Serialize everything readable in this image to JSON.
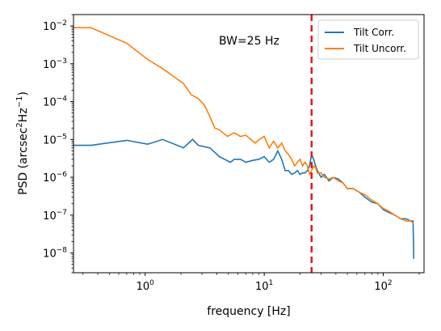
{
  "chart_data": {
    "type": "line",
    "x_scale": "log",
    "y_scale": "log",
    "xlabel": "frequency [Hz]",
    "ylabel": {
      "prefix": "PSD (arcsec",
      "sup1": "2",
      "mid": "Hz",
      "sup2": "−1",
      "suffix": ")"
    },
    "xlim": [
      0.25,
      220
    ],
    "ylim": [
      3e-09,
      0.02
    ],
    "x_ticks": [
      {
        "value": 1,
        "base": "10",
        "exp": "0"
      },
      {
        "value": 10,
        "base": "10",
        "exp": "1"
      },
      {
        "value": 100,
        "base": "10",
        "exp": "2"
      }
    ],
    "y_ticks": [
      {
        "value": 1e-08,
        "base": "10",
        "exp": "−8"
      },
      {
        "value": 1e-07,
        "base": "10",
        "exp": "−7"
      },
      {
        "value": 1e-06,
        "base": "10",
        "exp": "−6"
      },
      {
        "value": 1e-05,
        "base": "10",
        "exp": "−5"
      },
      {
        "value": 0.0001,
        "base": "10",
        "exp": "−4"
      },
      {
        "value": 0.001,
        "base": "10",
        "exp": "−3"
      },
      {
        "value": 0.01,
        "base": "10",
        "exp": "−2"
      }
    ],
    "vline": {
      "x": 25,
      "color": "#e41a1c",
      "style": "dashed"
    },
    "annotation": {
      "text": "BW=25 Hz",
      "x": 3.2,
      "y": 0.004
    },
    "legend_placement": "top-right",
    "series": [
      {
        "name": "Tilt Corr.",
        "color": "#1f77b4",
        "points": [
          [
            0.18,
            7e-06
          ],
          [
            0.35,
            7e-06
          ],
          [
            0.7,
            9.5e-06
          ],
          [
            1.05,
            7.5e-06
          ],
          [
            1.4,
            1e-05
          ],
          [
            2.1,
            6e-06
          ],
          [
            2.5,
            1e-05
          ],
          [
            2.8,
            7e-06
          ],
          [
            3.5,
            6e-06
          ],
          [
            4.2,
            3.5e-06
          ],
          [
            5.2,
            2.5e-06
          ],
          [
            5.6,
            3e-06
          ],
          [
            6.3,
            3e-06
          ],
          [
            7,
            2.5e-06
          ],
          [
            8,
            2.8e-06
          ],
          [
            9,
            3e-06
          ],
          [
            10,
            3.5e-06
          ],
          [
            11,
            2.5e-06
          ],
          [
            12,
            3e-06
          ],
          [
            13,
            5e-06
          ],
          [
            14,
            3e-06
          ],
          [
            15,
            1.5e-06
          ],
          [
            16,
            1.5e-06
          ],
          [
            17,
            1.2e-06
          ],
          [
            18,
            1.3e-06
          ],
          [
            19,
            1.5e-06
          ],
          [
            20,
            1.2e-06
          ],
          [
            21,
            1.3e-06
          ],
          [
            22,
            1.3e-06
          ],
          [
            23,
            1.5e-06
          ],
          [
            24,
            2e-06
          ],
          [
            25,
            4e-06
          ],
          [
            26,
            3e-06
          ],
          [
            27,
            2e-06
          ],
          [
            28,
            1.5e-06
          ],
          [
            30,
            1e-06
          ],
          [
            32,
            1.2e-06
          ],
          [
            35,
            8e-07
          ],
          [
            38,
            1e-06
          ],
          [
            42,
            9e-07
          ],
          [
            46,
            7e-07
          ],
          [
            50,
            5e-07
          ],
          [
            56,
            5e-07
          ],
          [
            63,
            4e-07
          ],
          [
            70,
            3e-07
          ],
          [
            80,
            2.2e-07
          ],
          [
            90,
            2e-07
          ],
          [
            100,
            1.4e-07
          ],
          [
            110,
            1.2e-07
          ],
          [
            125,
            1e-07
          ],
          [
            140,
            8e-08
          ],
          [
            155,
            8e-08
          ],
          [
            170,
            7e-08
          ],
          [
            178,
            7e-08
          ],
          [
            179.5,
            1.5e-08
          ],
          [
            180,
            7e-09
          ]
        ]
      },
      {
        "name": "Tilt Uncorr.",
        "color": "#ff7f0e",
        "points": [
          [
            0.18,
            0.009
          ],
          [
            0.35,
            0.009
          ],
          [
            0.7,
            0.0035
          ],
          [
            1.05,
            0.0013
          ],
          [
            1.4,
            0.00075
          ],
          [
            1.75,
            0.00045
          ],
          [
            2.1,
            0.0003
          ],
          [
            2.45,
            0.00015
          ],
          [
            2.8,
            0.00012
          ],
          [
            3.15,
            8e-05
          ],
          [
            3.5,
            4e-05
          ],
          [
            3.85,
            2e-05
          ],
          [
            4.2,
            1.8e-05
          ],
          [
            4.9,
            1.2e-05
          ],
          [
            5.6,
            1.5e-05
          ],
          [
            6.3,
            1.2e-05
          ],
          [
            7,
            1.3e-05
          ],
          [
            7.7,
            1e-05
          ],
          [
            8.4,
            8e-06
          ],
          [
            9.1,
            1e-05
          ],
          [
            10,
            1.2e-05
          ],
          [
            11,
            6e-06
          ],
          [
            12,
            9e-06
          ],
          [
            13,
            6e-06
          ],
          [
            14,
            8e-06
          ],
          [
            15,
            5e-06
          ],
          [
            16,
            4e-06
          ],
          [
            17,
            3e-06
          ],
          [
            18,
            2e-06
          ],
          [
            19,
            2.5e-06
          ],
          [
            20,
            3e-06
          ],
          [
            21,
            2e-06
          ],
          [
            22,
            2.5e-06
          ],
          [
            23,
            2e-06
          ],
          [
            24,
            1.2e-06
          ],
          [
            25,
            1.5e-06
          ],
          [
            26,
            2e-06
          ],
          [
            27,
            1.8e-06
          ],
          [
            28,
            1.3e-06
          ],
          [
            30,
            1.3e-06
          ],
          [
            32,
            1e-06
          ],
          [
            35,
            9e-07
          ],
          [
            38,
            1e-06
          ],
          [
            42,
            8e-07
          ],
          [
            46,
            7e-07
          ],
          [
            50,
            5e-07
          ],
          [
            56,
            5e-07
          ],
          [
            63,
            4e-07
          ],
          [
            70,
            3.5e-07
          ],
          [
            80,
            2.5e-07
          ],
          [
            90,
            2e-07
          ],
          [
            100,
            1.5e-07
          ],
          [
            110,
            1.3e-07
          ],
          [
            125,
            1e-07
          ],
          [
            140,
            8e-08
          ],
          [
            155,
            7e-08
          ],
          [
            170,
            7e-08
          ],
          [
            180,
            6e-08
          ]
        ]
      }
    ]
  }
}
